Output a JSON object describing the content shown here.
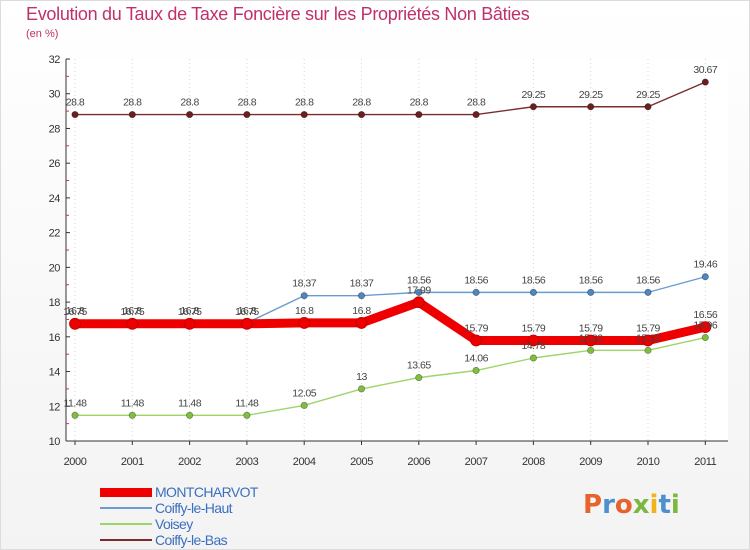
{
  "header": {
    "title": "Evolution du Taux de Taxe Foncière sur les Propriétés Non Bâties",
    "subtitle": "(en %)"
  },
  "logo": {
    "letters": [
      "P",
      "r",
      "o",
      "x",
      "i",
      "t",
      "i"
    ]
  },
  "chart_data": {
    "type": "line",
    "title": "Evolution du Taux de Taxe Foncière sur les Propriétés Non Bâties",
    "ylabel": "(en %)",
    "xlabel": "",
    "ylim": [
      10,
      32
    ],
    "yticks": [
      10,
      12,
      14,
      16,
      18,
      20,
      22,
      24,
      26,
      28,
      30,
      32
    ],
    "categories": [
      "2000",
      "2001",
      "2002",
      "2003",
      "2004",
      "2005",
      "2006",
      "2007",
      "2008",
      "2009",
      "2010",
      "2011"
    ],
    "legend_position": "bottom-left",
    "series": [
      {
        "name": "Coiffy-le-Bas",
        "color": "#7b2c2c",
        "marker": "#6b1f1f",
        "values": [
          28.8,
          28.8,
          28.8,
          28.8,
          28.8,
          28.8,
          28.8,
          28.8,
          29.25,
          29.25,
          29.25,
          30.67
        ],
        "labels": [
          "28.8",
          "28.8",
          "28.8",
          "28.8",
          "28.8",
          "28.8",
          "28.8",
          "28.8",
          "29.25",
          "29.25",
          "29.25",
          "30.67"
        ]
      },
      {
        "name": "Coiffy-le-Haut",
        "color": "#6a9ccf",
        "marker": "#4f86c0",
        "values": [
          16.8,
          16.8,
          16.8,
          16.8,
          18.37,
          18.37,
          18.56,
          18.56,
          18.56,
          18.56,
          18.56,
          19.46
        ],
        "labels": [
          "16.8",
          "16.8",
          "16.8",
          "16.8",
          "18.37",
          "18.37",
          "18.56",
          "18.56",
          "18.56",
          "18.56",
          "18.56",
          "19.46"
        ]
      },
      {
        "name": "Voisey",
        "color": "#9fd46a",
        "marker": "#7fbf3f",
        "values": [
          11.48,
          11.48,
          11.48,
          11.48,
          12.05,
          13,
          13.65,
          14.06,
          14.78,
          15.22,
          15.22,
          15.96
        ],
        "labels": [
          "11.48",
          "11.48",
          "11.48",
          "11.48",
          "12.05",
          "13",
          "13.65",
          "14.06",
          "14.78",
          "15.22",
          "15.22",
          "15.96"
        ]
      },
      {
        "name": "MONTCHARVOT",
        "color": "#ee0000",
        "marker": "#ee0000",
        "values": [
          16.75,
          16.75,
          16.75,
          16.75,
          16.8,
          16.8,
          17.99,
          15.79,
          15.79,
          15.79,
          15.79,
          16.56
        ],
        "labels": [
          "16.75",
          "16.75",
          "16.75",
          "16.75",
          "16.8",
          "16.8",
          "17.99",
          "15.79",
          "15.79",
          "15.79",
          "15.79",
          "16.56"
        ]
      }
    ],
    "legend_order": [
      "MONTCHARVOT",
      "Coiffy-le-Haut",
      "Voisey",
      "Coiffy-le-Bas"
    ]
  }
}
